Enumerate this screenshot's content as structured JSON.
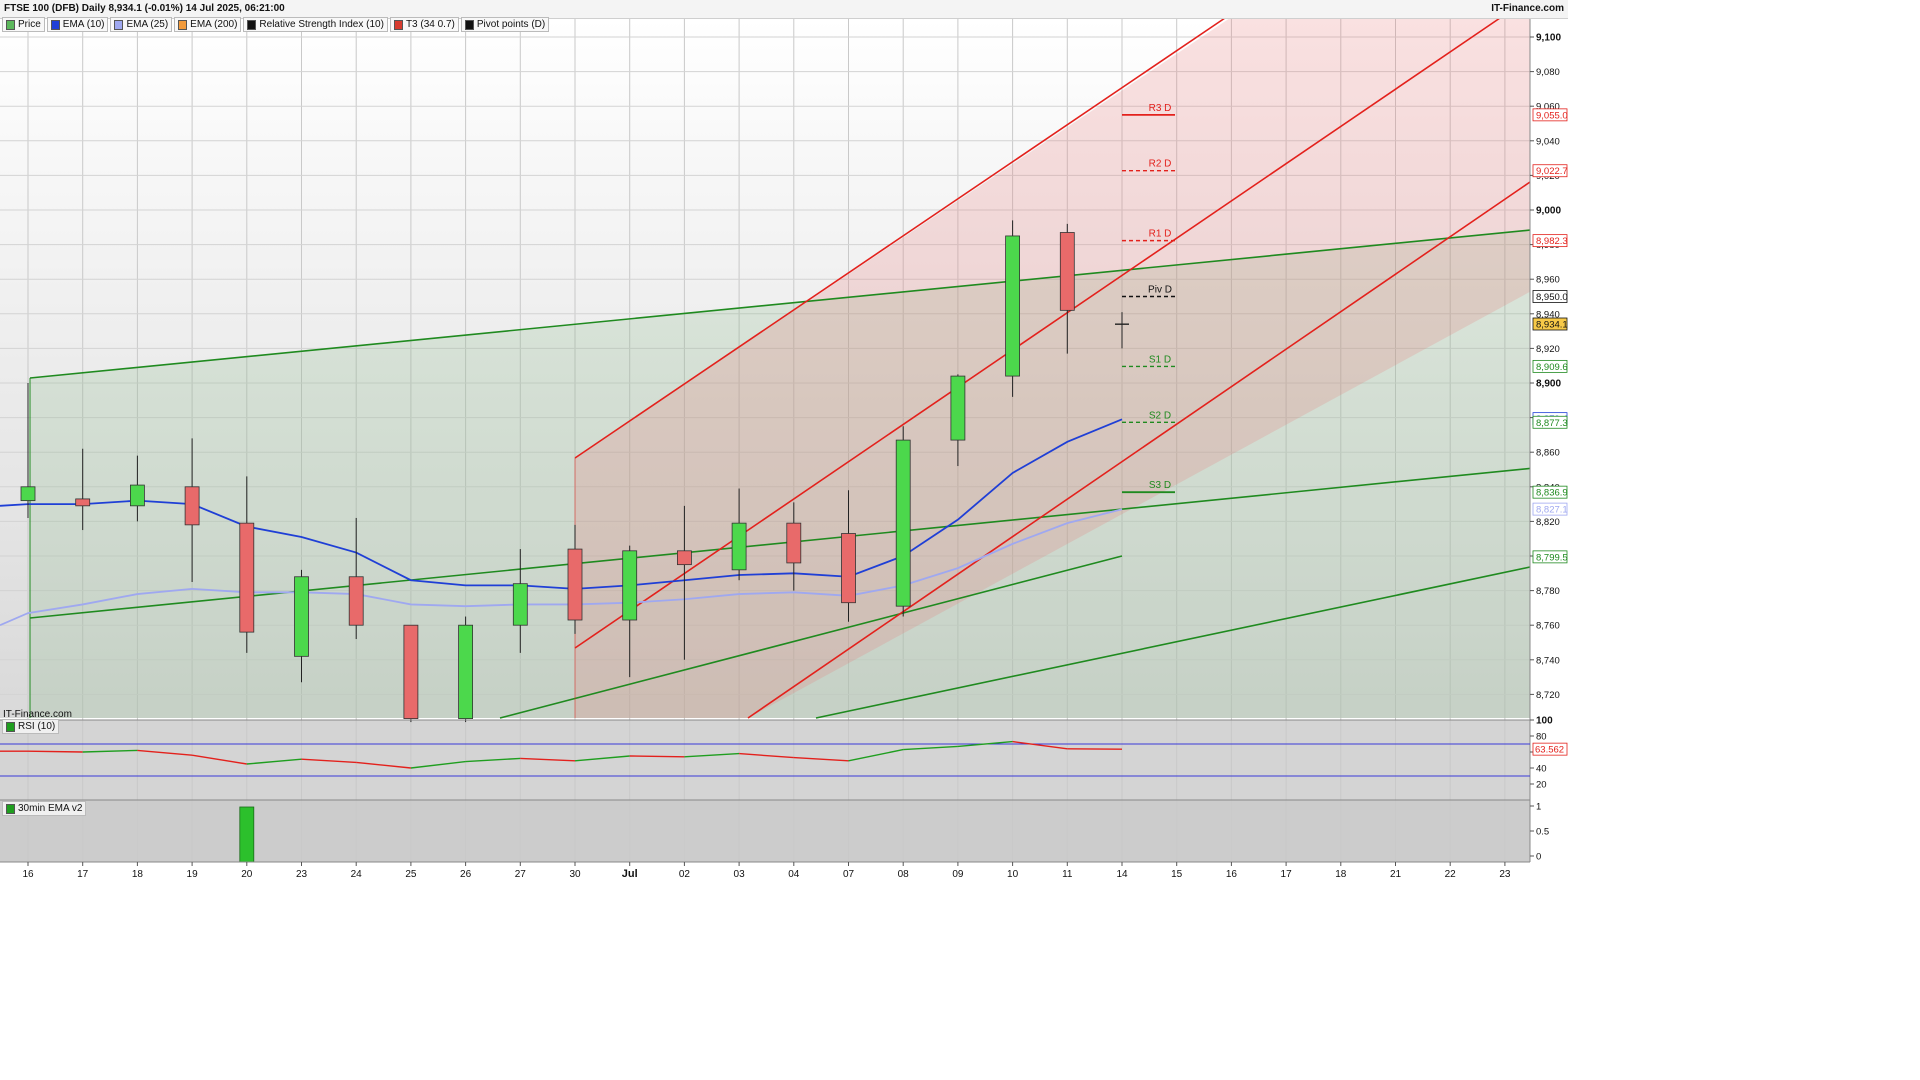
{
  "header": {
    "title": "FTSE 100 (DFB) Daily 8,934.1 (-0.01%) 14 Jul 2025, 06:21:00",
    "brand": "IT-Finance.com"
  },
  "watermark": "IT-Finance.com",
  "legend": [
    {
      "label": "Price",
      "color": "#5cb85c"
    },
    {
      "label": "EMA (10)",
      "color": "#1f3fd6"
    },
    {
      "label": "EMA (25)",
      "color": "#9fa8f0"
    },
    {
      "label": "EMA (200)",
      "color": "#f29b3c"
    },
    {
      "label": "Relative Strength Index (10)",
      "color": "#111111"
    },
    {
      "label": "T3 (34 0.7)",
      "color": "#d63b2f"
    },
    {
      "label": "Pivot points (D)",
      "color": "#111111"
    }
  ],
  "rsi_panel": {
    "label": "RSI (10)"
  },
  "ema_panel": {
    "label": "30min EMA v2"
  },
  "colors": {
    "up": "#4cd84c",
    "down": "#e86a6a",
    "ema10": "#1f3fd6",
    "ema25": "#9fa8f0",
    "channel_red": "#e3211c",
    "channel_green": "#1f8a1f",
    "rsi_up": "#1f9e1f",
    "rsi_down": "#e3211c"
  },
  "chart_data": {
    "type": "candlestick",
    "x_labels": [
      "16",
      "17",
      "18",
      "19",
      "20",
      "23",
      "24",
      "25",
      "26",
      "27",
      "30",
      "Jul",
      "02",
      "03",
      "04",
      "07",
      "08",
      "09",
      "10",
      "11",
      "14",
      "15",
      "16",
      "17",
      "18",
      "21",
      "22",
      "23"
    ],
    "ylim": [
      8700,
      9110
    ],
    "y_ticks": [
      8720,
      8740,
      8760,
      8780,
      8800,
      8820,
      8840,
      8860,
      8880,
      8900,
      8920,
      8940,
      8960,
      8980,
      9000,
      9020,
      9040,
      9060,
      9080,
      9100
    ],
    "candles": [
      {
        "x": "16",
        "open": 8832,
        "high": 8900,
        "low": 8822,
        "close": 8840
      },
      {
        "x": "17",
        "open": 8833,
        "high": 8862,
        "low": 8815,
        "close": 8829
      },
      {
        "x": "18",
        "open": 8829,
        "high": 8858,
        "low": 8820,
        "close": 8841
      },
      {
        "x": "19",
        "open": 8840,
        "high": 8868,
        "low": 8785,
        "close": 8818
      },
      {
        "x": "20",
        "open": 8819,
        "high": 8846,
        "low": 8744,
        "close": 8756
      },
      {
        "x": "23",
        "open": 8742,
        "high": 8792,
        "low": 8727,
        "close": 8788
      },
      {
        "x": "24",
        "open": 8788,
        "high": 8822,
        "low": 8752,
        "close": 8760
      },
      {
        "x": "25",
        "open": 8760,
        "high": 8760,
        "low": 8704,
        "close": 8706
      },
      {
        "x": "26",
        "open": 8706,
        "high": 8765,
        "low": 8704,
        "close": 8760
      },
      {
        "x": "27",
        "open": 8760,
        "high": 8804,
        "low": 8744,
        "close": 8784
      },
      {
        "x": "30",
        "open": 8804,
        "high": 8818,
        "low": 8755,
        "close": 8763
      },
      {
        "x": "Jul",
        "open": 8763,
        "high": 8806,
        "low": 8730,
        "close": 8803
      },
      {
        "x": "02",
        "open": 8803,
        "high": 8829,
        "low": 8740,
        "close": 8795
      },
      {
        "x": "03",
        "open": 8792,
        "high": 8839,
        "low": 8786,
        "close": 8819
      },
      {
        "x": "04",
        "open": 8819,
        "high": 8831,
        "low": 8780,
        "close": 8796
      },
      {
        "x": "07",
        "open": 8813,
        "high": 8838,
        "low": 8762,
        "close": 8773
      },
      {
        "x": "08",
        "open": 8771,
        "high": 8875,
        "low": 8765,
        "close": 8867
      },
      {
        "x": "09",
        "open": 8867,
        "high": 8905,
        "low": 8852,
        "close": 8904
      },
      {
        "x": "10",
        "open": 8904,
        "high": 8994,
        "low": 8892,
        "close": 8985
      },
      {
        "x": "11",
        "open": 8987,
        "high": 8992,
        "low": 8917,
        "close": 8942
      },
      {
        "x": "14",
        "open": 8934,
        "high": 8941,
        "low": 8920,
        "close": 8934
      }
    ],
    "ema10": [
      8830,
      8830,
      8832,
      8830,
      8817,
      8811,
      8802,
      8786,
      8783,
      8783,
      8781,
      8783,
      8786,
      8789,
      8790,
      8788,
      8800,
      8821,
      8848,
      8866,
      8879
    ],
    "ema25": [
      8767,
      8772,
      8778,
      8781,
      8779,
      8779,
      8778,
      8772,
      8771,
      8772,
      8772,
      8773,
      8775,
      8778,
      8779,
      8777,
      8783,
      8793,
      8807,
      8819,
      8827
    ],
    "pivots": [
      {
        "label": "R3 D",
        "value": "9,055.0",
        "color": "#e3211c",
        "dash": false
      },
      {
        "label": "R2 D",
        "value": "9,022.7",
        "color": "#e3211c",
        "dash": true
      },
      {
        "label": "R1 D",
        "value": "8,982.3",
        "color": "#e3211c",
        "dash": true
      },
      {
        "label": "Piv D",
        "value": "8,950.0",
        "color": "#111111",
        "dash": true
      },
      {
        "label": "S1 D",
        "value": "8,909.6",
        "color": "#1f8a1f",
        "dash": true
      },
      {
        "label": "S2 D",
        "value": "8,877.3",
        "color": "#1f8a1f",
        "dash": true
      },
      {
        "label": "S3 D",
        "value": "8,836.9",
        "color": "#1f8a1f",
        "dash": false
      }
    ],
    "price_tags": [
      {
        "value": "9,055.0",
        "price": 9055.0,
        "color": "#e3211c",
        "bg": "#ffffff"
      },
      {
        "value": "9,022.7",
        "price": 9022.7,
        "color": "#e3211c",
        "bg": "#ffffff"
      },
      {
        "value": "8,982.3",
        "price": 8982.3,
        "color": "#e3211c",
        "bg": "#ffffff"
      },
      {
        "value": "8,950.0",
        "price": 8950.0,
        "color": "#111111",
        "bg": "#ffffff"
      },
      {
        "value": "8,934.1",
        "price": 8934.1,
        "color": "#111111",
        "bg": "#f7c948"
      },
      {
        "value": "8,909.6",
        "price": 8909.6,
        "color": "#1f8a1f",
        "bg": "#ffffff"
      },
      {
        "value": "8,879.4",
        "price": 8879.4,
        "color": "#1f3fd6",
        "bg": "#ffffff"
      },
      {
        "value": "8,877.3",
        "price": 8877.3,
        "color": "#1f8a1f",
        "bg": "#ffffff"
      },
      {
        "value": "8,836.9",
        "price": 8836.9,
        "color": "#1f8a1f",
        "bg": "#ffffff"
      },
      {
        "value": "8,827.1",
        "price": 8827.1,
        "color": "#9fa8f0",
        "bg": "#ffffff"
      },
      {
        "value": "8,799.5",
        "price": 8799.5,
        "color": "#1f8a1f",
        "bg": "#ffffff"
      }
    ],
    "rsi": {
      "ylim": [
        0,
        100
      ],
      "y_ticks": [
        20,
        40,
        60,
        80,
        100
      ],
      "levels": [
        70,
        30
      ],
      "values": [
        61,
        60,
        62,
        56,
        45,
        51,
        47,
        40,
        48,
        52,
        49,
        55,
        54,
        58,
        53,
        49,
        63,
        67,
        73,
        64,
        63.562
      ],
      "last_label": "63.562"
    },
    "ema_v2": {
      "ylim": [
        0,
        1
      ],
      "y_ticks": [
        "1",
        "0.5",
        "0"
      ],
      "bars": [
        {
          "x": "20",
          "value": 1
        }
      ]
    }
  }
}
